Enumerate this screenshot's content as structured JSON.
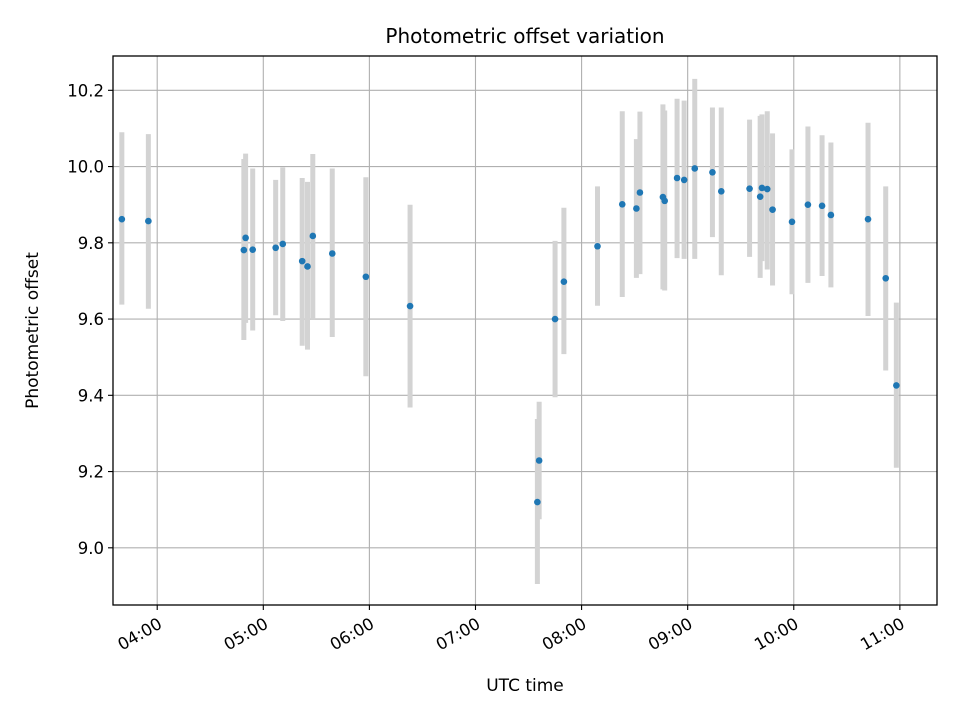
{
  "chart_data": {
    "type": "scatter",
    "title": "Photometric offset variation",
    "xlabel": "UTC time",
    "ylabel": "Photometric offset",
    "x_format": "HH:MM",
    "xlim": [
      "03:35",
      "11:21"
    ],
    "ylim": [
      8.85,
      10.29
    ],
    "xticks": [
      "04:00",
      "05:00",
      "06:00",
      "07:00",
      "08:00",
      "09:00",
      "10:00",
      "11:00"
    ],
    "yticks": [
      "9.0",
      "9.2",
      "9.4",
      "9.6",
      "9.8",
      "10.0",
      "10.2"
    ],
    "grid": true,
    "legend": "none",
    "colors": {
      "points": "#1f77b4",
      "errorbars": "#d3d3d3",
      "grid": "#b0b0b0"
    },
    "series": [
      {
        "points": [
          {
            "x": "03:40",
            "y": 9.862,
            "lo": 9.638,
            "hi": 10.09
          },
          {
            "x": "03:55",
            "y": 9.857,
            "lo": 9.627,
            "hi": 10.085
          },
          {
            "x": "04:49",
            "y": 9.781,
            "lo": 9.545,
            "hi": 10.02
          },
          {
            "x": "04:50",
            "y": 9.813,
            "lo": 9.59,
            "hi": 10.034
          },
          {
            "x": "04:54",
            "y": 9.782,
            "lo": 9.57,
            "hi": 9.995
          },
          {
            "x": "05:07",
            "y": 9.787,
            "lo": 9.61,
            "hi": 9.965
          },
          {
            "x": "05:11",
            "y": 9.797,
            "lo": 9.595,
            "hi": 9.998
          },
          {
            "x": "05:22",
            "y": 9.752,
            "lo": 9.53,
            "hi": 9.97
          },
          {
            "x": "05:25",
            "y": 9.738,
            "lo": 9.52,
            "hi": 9.96
          },
          {
            "x": "05:28",
            "y": 9.818,
            "lo": 9.6,
            "hi": 10.033
          },
          {
            "x": "05:39",
            "y": 9.772,
            "lo": 9.553,
            "hi": 9.995
          },
          {
            "x": "05:58",
            "y": 9.711,
            "lo": 9.45,
            "hi": 9.972
          },
          {
            "x": "06:23",
            "y": 9.634,
            "lo": 9.368,
            "hi": 9.9
          },
          {
            "x": "07:35",
            "y": 9.12,
            "lo": 8.905,
            "hi": 9.338
          },
          {
            "x": "07:36",
            "y": 9.229,
            "lo": 9.075,
            "hi": 9.383
          },
          {
            "x": "07:45",
            "y": 9.6,
            "lo": 9.395,
            "hi": 9.805
          },
          {
            "x": "07:50",
            "y": 9.698,
            "lo": 9.508,
            "hi": 9.892
          },
          {
            "x": "08:09",
            "y": 9.791,
            "lo": 9.635,
            "hi": 9.948
          },
          {
            "x": "08:23",
            "y": 9.901,
            "lo": 9.658,
            "hi": 10.145
          },
          {
            "x": "08:31",
            "y": 9.89,
            "lo": 9.708,
            "hi": 10.072
          },
          {
            "x": "08:33",
            "y": 9.932,
            "lo": 9.718,
            "hi": 10.144
          },
          {
            "x": "08:46",
            "y": 9.92,
            "lo": 9.678,
            "hi": 10.163
          },
          {
            "x": "08:47",
            "y": 9.91,
            "lo": 9.675,
            "hi": 10.147
          },
          {
            "x": "08:54",
            "y": 9.97,
            "lo": 9.76,
            "hi": 10.178
          },
          {
            "x": "08:58",
            "y": 9.965,
            "lo": 9.758,
            "hi": 10.173
          },
          {
            "x": "09:04",
            "y": 9.995,
            "lo": 9.758,
            "hi": 10.23
          },
          {
            "x": "09:14",
            "y": 9.985,
            "lo": 9.815,
            "hi": 10.155
          },
          {
            "x": "09:19",
            "y": 9.935,
            "lo": 9.715,
            "hi": 10.155
          },
          {
            "x": "09:35",
            "y": 9.942,
            "lo": 9.763,
            "hi": 10.123
          },
          {
            "x": "09:41",
            "y": 9.921,
            "lo": 9.708,
            "hi": 10.133
          },
          {
            "x": "09:42",
            "y": 9.944,
            "lo": 9.752,
            "hi": 10.137
          },
          {
            "x": "09:45",
            "y": 9.941,
            "lo": 9.73,
            "hi": 10.145
          },
          {
            "x": "09:48",
            "y": 9.887,
            "lo": 9.688,
            "hi": 10.087
          },
          {
            "x": "09:59",
            "y": 9.855,
            "lo": 9.665,
            "hi": 10.045
          },
          {
            "x": "10:08",
            "y": 9.9,
            "lo": 9.695,
            "hi": 10.105
          },
          {
            "x": "10:16",
            "y": 9.897,
            "lo": 9.713,
            "hi": 10.082
          },
          {
            "x": "10:21",
            "y": 9.873,
            "lo": 9.683,
            "hi": 10.063
          },
          {
            "x": "10:42",
            "y": 9.862,
            "lo": 9.608,
            "hi": 10.115
          },
          {
            "x": "10:52",
            "y": 9.707,
            "lo": 9.465,
            "hi": 9.948
          },
          {
            "x": "10:58",
            "y": 9.426,
            "lo": 9.21,
            "hi": 9.643
          }
        ]
      }
    ]
  }
}
